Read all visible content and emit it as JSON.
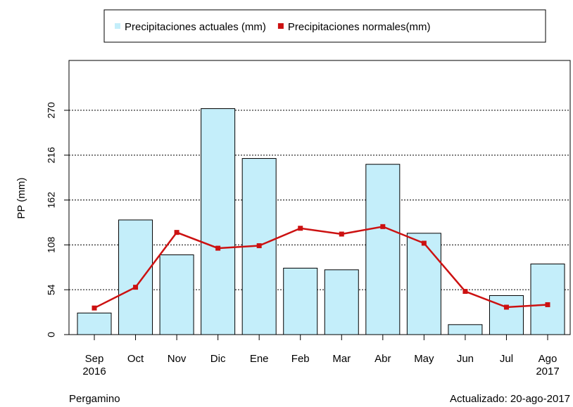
{
  "chart_data": {
    "type": "bar-line",
    "categories": [
      "Sep\n2016",
      "Oct",
      "Nov",
      "Dic",
      "Ene",
      "Feb",
      "Mar",
      "Abr",
      "May",
      "Jun",
      "Jul",
      "Ago\n2017"
    ],
    "series": [
      {
        "name": "Precipitaciones actuales (mm)",
        "type": "bar",
        "color": "#c4eefa",
        "values": [
          26,
          138,
          96,
          272,
          212,
          80,
          78,
          205,
          122,
          12,
          47,
          85
        ]
      },
      {
        "name": "Precipitaciones normales(mm)",
        "type": "line",
        "color": "#cc1111",
        "values": [
          32,
          57,
          123,
          104,
          107,
          128,
          121,
          130,
          110,
          52,
          33,
          36
        ]
      }
    ],
    "y_label": "PP (mm)",
    "ylim": [
      0,
      330
    ],
    "yticks": [
      0,
      54,
      108,
      162,
      216,
      270
    ],
    "grid": true,
    "legend": "top",
    "footer_left": "Pergamino",
    "footer_right": "Actualizado: 20-ago-2017"
  }
}
